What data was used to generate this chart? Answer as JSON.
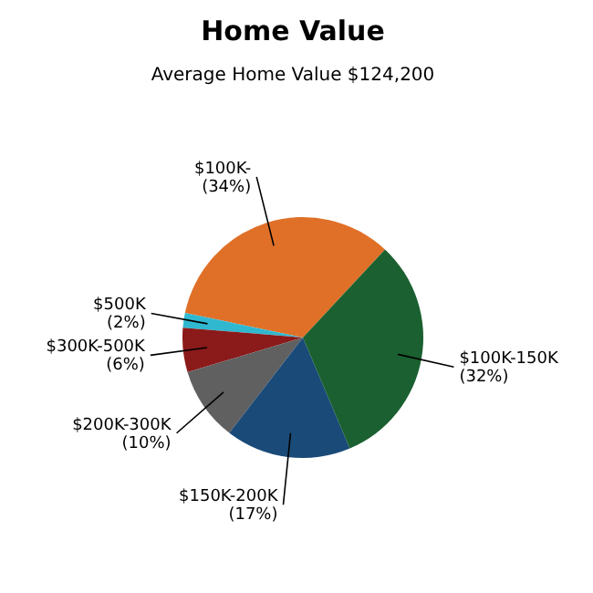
{
  "chart_data": {
    "type": "pie",
    "title": "Home Value",
    "subtitle": "Average Home Value  $124,200",
    "categories": [
      "$100K-",
      "$500K",
      "$300K-500K",
      "$200K-300K",
      "$150K-200K",
      "$100K-150K"
    ],
    "values": [
      34,
      2,
      6,
      10,
      17,
      32
    ],
    "value_labels": [
      "(34%)",
      "(2%)",
      "(6%)",
      "(10%)",
      "(17%)",
      "(32%)"
    ],
    "colors": [
      "#e07028",
      "#30b8d0",
      "#8b1a1a",
      "#606060",
      "#1a4a78",
      "#1a6030"
    ],
    "legend": false
  }
}
